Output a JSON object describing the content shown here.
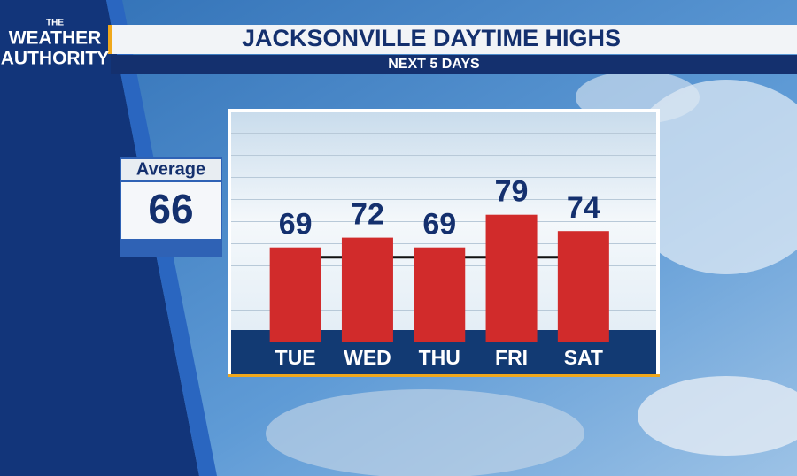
{
  "logo": {
    "line1": "THE",
    "line2": "WEATHER",
    "line3": "AUTHORITY"
  },
  "chart_data": {
    "type": "bar",
    "title": "JACKSONVILLE DAYTIME HIGHS",
    "subtitle": "NEXT 5 DAYS",
    "categories": [
      "TUE",
      "WED",
      "THU",
      "FRI",
      "SAT"
    ],
    "values": [
      69,
      72,
      69,
      79,
      74
    ],
    "color": "#d12b2b",
    "ylim": [
      40,
      110
    ],
    "average": {
      "label": "Average",
      "value": 66
    }
  }
}
